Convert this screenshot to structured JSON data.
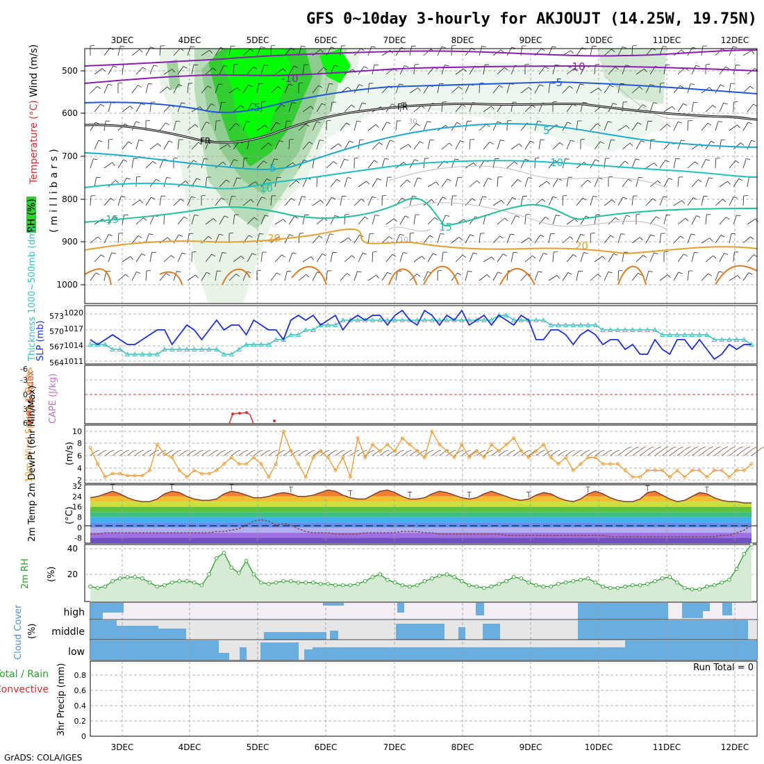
{
  "title": "GFS 0~10day 3-hourly for AKJOUJT (14.25W, 19.75N)",
  "credit": "GrADS: COLA/IGES",
  "date_labels": [
    "3DEC",
    "4DEC",
    "5DEC",
    "6DEC",
    "7DEC",
    "8DEC",
    "9DEC",
    "10DEC",
    "11DEC",
    "12DEC"
  ],
  "colors": {
    "rh_light": "#e6f2e6",
    "rh_mid": "#b3d9b3",
    "rh_green": "#33cc33",
    "rh_bright": "#00ff00",
    "temp_purple": "#8a1bb3",
    "temp_blue": "#2157d6",
    "temp_cyan": "#19aacc",
    "temp_teal": "#1fbf9f",
    "temp_orange": "#e0a030",
    "slp": "#1a2fd0",
    "thickness": "#3cc0c0",
    "lifted": "#d03030",
    "wind_speed": "#e89a30",
    "barb": "#7a5a45",
    "rh2m": "#2aa02a",
    "cloud": "#6aaee0",
    "cloud_bg": "#e6e6e6"
  },
  "panels": {
    "upper": {
      "ylabels": [
        "Wind (m/s)",
        "Temperature (°C)",
        "RH (%)"
      ],
      "yunit": "(millibars)",
      "yticks": [
        "500",
        "600",
        "700",
        "800",
        "900",
        "1000"
      ],
      "contour_labels": {
        "m10a": "-10",
        "m10b": "-10",
        "m5a": "-5",
        "m5b": "-5",
        "fr1": "FR",
        "fr2": "FR",
        "p5a": "5",
        "p5b": "5",
        "p10a": "10",
        "p10b": "10",
        "p15a": "15",
        "p15b": "15",
        "p20a": "20",
        "p20b": "20",
        "r30": "30",
        "r10": "10"
      }
    },
    "pressure": {
      "ylabel_left": "Thickness 1000~500mb (dm)",
      "ylabel_right": "SLP (mb)",
      "yticks_left": [
        "573",
        "570",
        "567",
        "564"
      ],
      "yticks_right": [
        "1020",
        "1017",
        "1014",
        "1011"
      ]
    },
    "stability": {
      "ylabel_left": "Lifted Index",
      "ylabel_right": "CAPE (J/kg)",
      "yticks": [
        "-6",
        "-3",
        "0",
        "3",
        "6"
      ]
    },
    "wind10m": {
      "ylabel": "10m Wind Speed & Barbs",
      "yunit": "(m/s)",
      "yticks": [
        "10",
        "8",
        "6",
        "4",
        "2"
      ]
    },
    "temp2m": {
      "ylabel": "2m Temp 2m DewPt (6hr Min/Max)",
      "yunit": "(°C)",
      "yticks": [
        "32",
        "24",
        "16",
        "8",
        "0",
        "-8"
      ]
    },
    "rh2m": {
      "ylabel": "2m RH",
      "yunit": "(%)",
      "yticks": [
        "40",
        "20"
      ]
    },
    "cloud": {
      "ylabel": "Cloud Cover",
      "yunit": "(%)",
      "levels": [
        "high",
        "middle",
        "low"
      ]
    },
    "precip": {
      "ylabel_left": "Total / Rain",
      "ylabel_left2": "Convective",
      "ylabel": "3hr Precip (mm)",
      "yticks": [
        "0.8",
        "0.6",
        "0.4",
        "0.2",
        "0"
      ],
      "run_total": "Run Total = 0"
    }
  },
  "chart_data": [
    {
      "type": "line",
      "name": "sea-level-pressure",
      "x_unit": "3-hourly steps from 2 DEC 12Z",
      "ylim": [
        1010,
        1022
      ],
      "values": [
        1015,
        1014,
        1015,
        1016,
        1015,
        1014,
        1014,
        1015,
        1016,
        1017,
        1017,
        1014,
        1016,
        1018,
        1017,
        1015,
        1017,
        1019,
        1017,
        1018,
        1018,
        1016,
        1019,
        1018,
        1017,
        1017,
        1015,
        1019,
        1020,
        1019,
        1020,
        1018,
        1019,
        1020,
        1017,
        1019,
        1020,
        1019,
        1020,
        1020,
        1018,
        1020,
        1021,
        1019,
        1018,
        1021,
        1020,
        1018,
        1020,
        1019,
        1021,
        1018,
        1019,
        1020,
        1018,
        1020,
        1019,
        1018,
        1020,
        1019,
        1015,
        1015,
        1017,
        1017,
        1016,
        1014,
        1016,
        1017,
        1016,
        1014,
        1015,
        1015,
        1013,
        1014,
        1012,
        1012,
        1015,
        1013,
        1012,
        1015,
        1015,
        1013,
        1015,
        1013,
        1011,
        1012,
        1014,
        1013,
        1014,
        1014
      ]
    },
    {
      "type": "line",
      "name": "thickness-1000-500mb",
      "ylim": [
        563,
        575
      ],
      "values": [
        567,
        567,
        567,
        566,
        566,
        565,
        565,
        565,
        565,
        565,
        566,
        566,
        566,
        566,
        566,
        566,
        566,
        566,
        565,
        565,
        566,
        567,
        567,
        567,
        567,
        568,
        568,
        569,
        569,
        570,
        570,
        571,
        571,
        571,
        572,
        572,
        572,
        572,
        572,
        572,
        572,
        572,
        572,
        572,
        572,
        572,
        572,
        572,
        572,
        572,
        572,
        572,
        572,
        572,
        572,
        573,
        573,
        572,
        572,
        572,
        572,
        572,
        571,
        571,
        571,
        571,
        571,
        571,
        571,
        570,
        570,
        570,
        570,
        570,
        570,
        570,
        570,
        569,
        569,
        569,
        569,
        569,
        569,
        569,
        568,
        568,
        568,
        568,
        568,
        567
      ]
    },
    {
      "type": "line",
      "name": "10m-wind-speed",
      "ylim": [
        2,
        11
      ],
      "values": [
        7.5,
        5,
        3,
        3.5,
        3.5,
        3.2,
        3.2,
        3.2,
        4,
        8,
        6.5,
        6,
        4,
        3,
        4,
        3.5,
        3.5,
        4,
        5,
        6,
        5,
        5,
        6,
        5,
        3,
        5,
        10,
        7,
        5,
        3,
        6,
        7,
        6,
        4,
        6,
        3,
        9,
        6,
        8,
        7,
        8,
        7,
        9,
        8,
        7,
        6,
        10,
        8,
        7,
        6,
        8,
        6,
        7,
        6,
        8,
        7,
        8,
        9,
        7,
        6,
        7,
        8,
        6,
        5,
        6,
        4,
        5,
        6,
        6,
        5,
        5,
        5,
        4,
        3,
        3,
        4,
        4,
        4,
        3,
        4,
        3,
        4,
        4,
        3,
        4,
        4,
        3,
        4,
        4,
        5
      ]
    },
    {
      "type": "area",
      "name": "2m-temperature",
      "ylim": [
        -12,
        33
      ],
      "values": [
        23,
        24,
        26,
        28,
        26,
        23,
        21,
        20,
        20,
        22,
        26,
        28,
        27,
        24,
        22,
        21,
        21,
        22,
        26,
        28,
        27,
        25,
        23,
        23,
        24,
        26,
        27,
        26,
        24,
        24,
        25,
        27,
        29,
        28,
        25,
        23,
        22,
        22,
        25,
        28,
        29,
        27,
        24,
        22,
        22,
        23,
        26,
        28,
        27,
        25,
        23,
        22,
        23,
        26,
        28,
        26,
        24,
        22,
        21,
        22,
        25,
        27,
        26,
        23,
        21,
        20,
        22,
        26,
        28,
        26,
        23,
        21,
        20,
        20,
        22,
        27,
        28,
        25,
        22,
        20,
        21,
        24,
        27,
        26,
        23,
        21,
        20,
        20,
        19,
        19
      ]
    },
    {
      "type": "line",
      "name": "2m-dewpoint",
      "ylim": [
        -12,
        33
      ],
      "values": [
        -5,
        -5,
        -4,
        -4,
        -4,
        -4,
        -4,
        -4,
        -4,
        -4,
        -4,
        -4,
        -4,
        -4,
        -4,
        -4,
        -4,
        -3,
        -3,
        -2,
        -1,
        2,
        5,
        6,
        5,
        2,
        3,
        2,
        -1,
        -3,
        -4,
        -4,
        -4,
        -5,
        -5,
        -5,
        -5,
        -4,
        -4,
        -4,
        -4,
        -4,
        -3,
        -3,
        -3,
        -4,
        -4,
        -5,
        -5,
        -5,
        -5,
        -5,
        -5,
        -5,
        -5,
        -5,
        -6,
        -6,
        -6,
        -6,
        -6,
        -6,
        -6,
        -6,
        -6,
        -6,
        -6,
        -6,
        -6,
        -6,
        -7,
        -7,
        -7,
        -7,
        -7,
        -7,
        -7,
        -7,
        -7,
        -7,
        -7,
        -7,
        -7,
        -7,
        -7,
        -6,
        -6,
        -4,
        -2,
        2
      ]
    },
    {
      "type": "area",
      "name": "2m-relative-humidity",
      "ylim": [
        0,
        42
      ],
      "values": [
        11,
        10,
        11,
        15,
        17,
        18,
        18,
        17,
        14,
        11,
        12,
        14,
        15,
        15,
        14,
        12,
        20,
        32,
        36,
        25,
        21,
        30,
        20,
        14,
        13,
        14,
        15,
        15,
        14,
        14,
        14,
        13,
        13,
        12,
        12,
        12,
        13,
        15,
        18,
        20,
        16,
        14,
        12,
        11,
        12,
        15,
        17,
        19,
        20,
        18,
        15,
        12,
        11,
        10,
        11,
        13,
        15,
        18,
        17,
        14,
        12,
        11,
        11,
        13,
        14,
        15,
        16,
        17,
        14,
        11,
        10,
        10,
        11,
        12,
        12,
        13,
        15,
        17,
        18,
        14,
        10,
        9,
        9,
        11,
        12,
        14,
        16,
        24,
        35,
        42
      ]
    },
    {
      "type": "table",
      "name": "cloud-cover",
      "rows": [
        "high",
        "middle",
        "low"
      ],
      "note": "percent cover per 3-hourly step"
    },
    {
      "type": "bar",
      "name": "3hr-precip",
      "ylim": [
        0,
        0.9
      ],
      "values": []
    }
  ]
}
